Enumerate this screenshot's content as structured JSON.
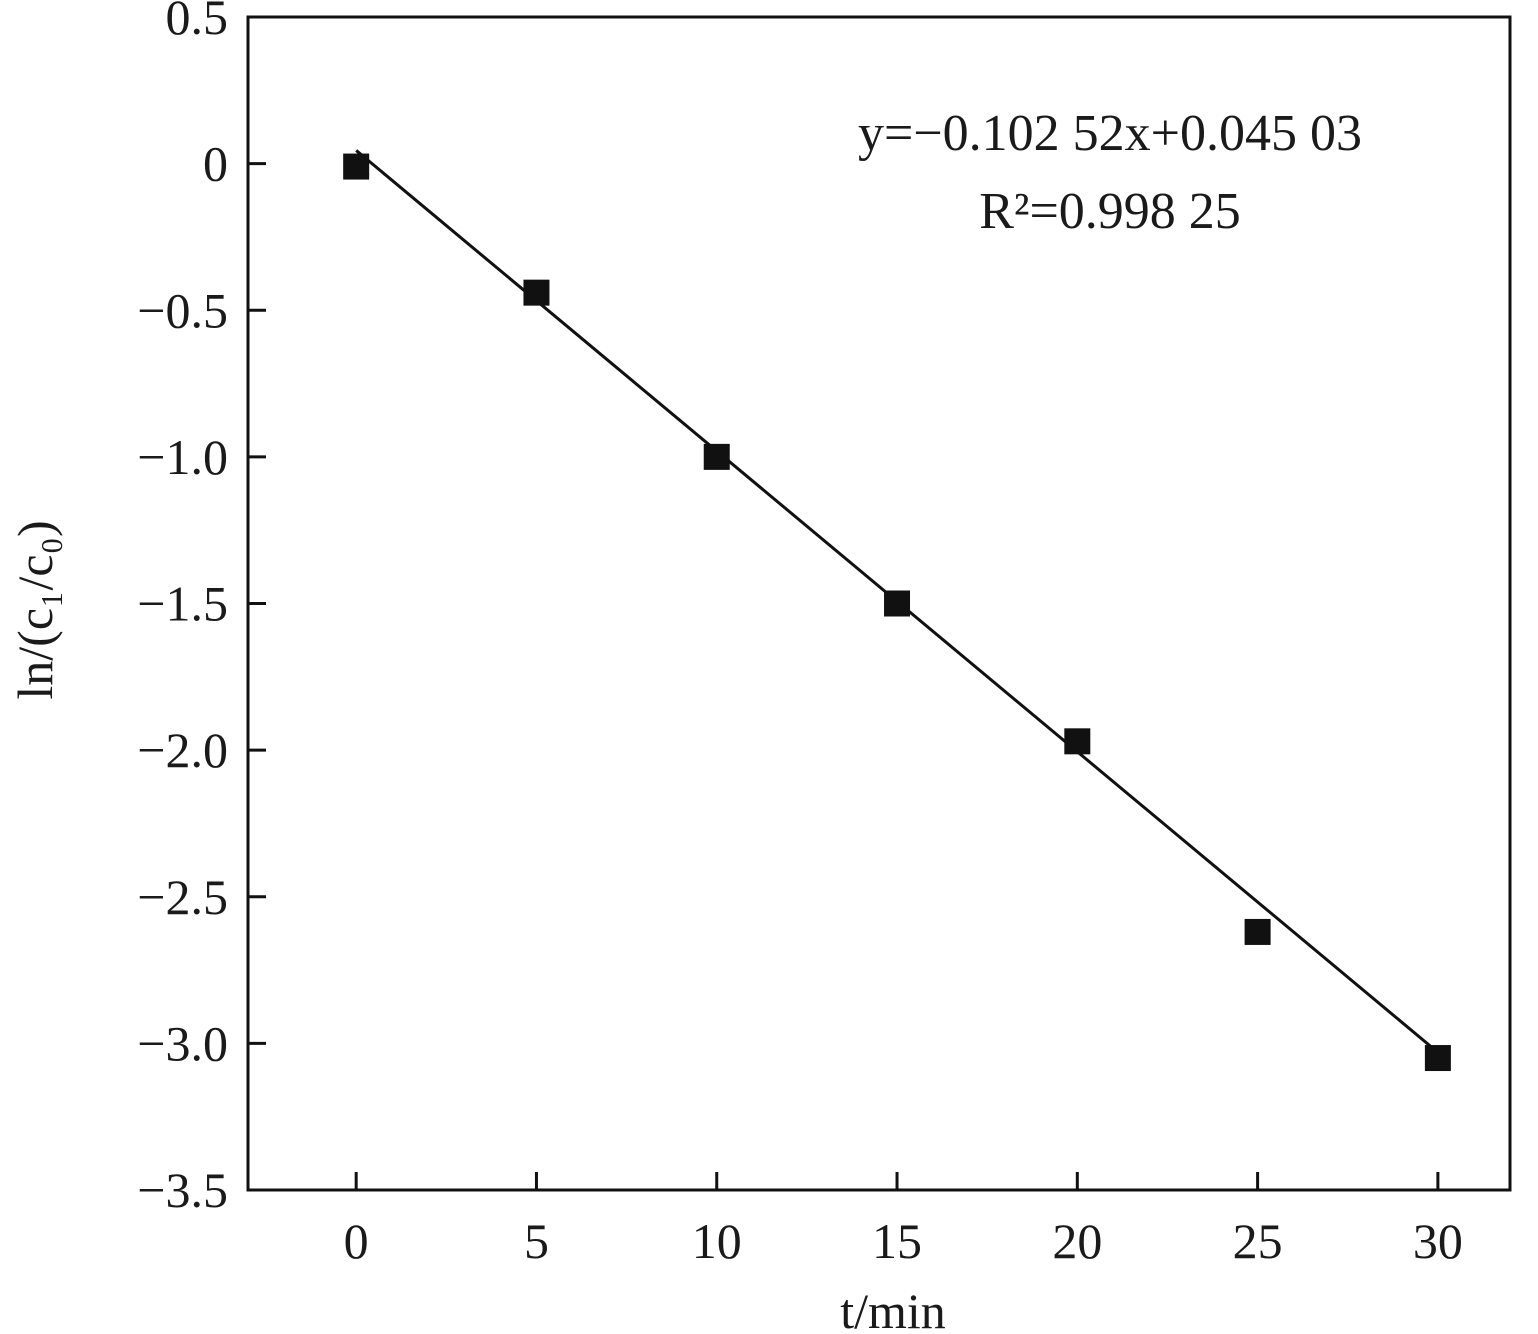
{
  "chart_data": {
    "type": "scatter",
    "xlabel": "t/min",
    "ylabel": "ln/(c₁/c₀)",
    "xlim": [
      -3,
      32
    ],
    "ylim": [
      -3.5,
      0.5
    ],
    "xticks": [
      0,
      5,
      10,
      15,
      20,
      25,
      30
    ],
    "yticks": [
      0.5,
      0,
      -0.5,
      -1.0,
      -1.5,
      -2.0,
      -2.5,
      -3.0,
      -3.5
    ],
    "xtick_labels": [
      "0",
      "5",
      "10",
      "15",
      "20",
      "25",
      "30"
    ],
    "ytick_labels": [
      "0.5",
      "0",
      "−0.5",
      "−1.0",
      "−1.5",
      "−2.0",
      "−2.5",
      "−3.0",
      "−3.5"
    ],
    "grid": false,
    "series": [
      {
        "marker": "square",
        "color": "#111111",
        "x": [
          0,
          5,
          10,
          15,
          20,
          25,
          30
        ],
        "y": [
          -0.01,
          -0.44,
          -1.0,
          -1.5,
          -1.97,
          -2.62,
          -3.05
        ]
      }
    ],
    "fit": {
      "slope": -0.10252,
      "intercept": 0.04503,
      "x_range": [
        0,
        30
      ],
      "color": "#111111"
    },
    "annotations": {
      "equation": "y=−0.102 52x+0.045 03",
      "r_squared": "R²=0.998 25"
    }
  }
}
